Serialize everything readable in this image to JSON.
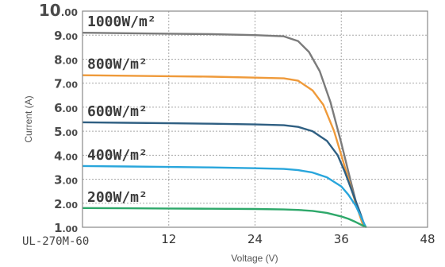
{
  "chart_data": {
    "type": "line",
    "title": "",
    "xlabel": "Voltage (V)",
    "ylabel": "Current (A)",
    "xlim": [
      0,
      48
    ],
    "ylim": [
      1,
      10
    ],
    "x_ticks": [
      "12",
      "24",
      "36",
      "48"
    ],
    "y_ticks": [
      "1.00",
      "2.00",
      "3.00",
      "4.00",
      "5.00",
      "6.00",
      "7.00",
      "8.00",
      "9.00",
      "10.00"
    ],
    "grid": true,
    "annotation": "UL-270M-60",
    "series": [
      {
        "name": "1000W/m²",
        "color": "#7b7b7b",
        "x": [
          0,
          6,
          12,
          18,
          24,
          28,
          30,
          31.5,
          33,
          34.5,
          36,
          37,
          38,
          38.8,
          39.3
        ],
        "y": [
          9.1,
          9.08,
          9.06,
          9.04,
          9.0,
          8.95,
          8.75,
          8.3,
          7.5,
          6.2,
          4.5,
          3.3,
          2.1,
          1.3,
          1.0
        ]
      },
      {
        "name": "800W/m²",
        "color": "#ef9a3a",
        "x": [
          0,
          6,
          12,
          18,
          24,
          28,
          30,
          32,
          33.5,
          35,
          36,
          37,
          38,
          38.9,
          39.3
        ],
        "y": [
          7.33,
          7.31,
          7.29,
          7.27,
          7.23,
          7.2,
          7.1,
          6.7,
          6.1,
          5.0,
          4.0,
          3.0,
          2.0,
          1.2,
          1.0
        ]
      },
      {
        "name": "600W/m²",
        "color": "#2f5f82",
        "x": [
          0,
          6,
          12,
          18,
          24,
          28,
          30,
          32,
          34,
          35.5,
          36.5,
          37.5,
          38.5,
          39.1,
          39.4
        ],
        "y": [
          5.37,
          5.35,
          5.33,
          5.31,
          5.28,
          5.25,
          5.18,
          5.0,
          4.6,
          4.0,
          3.3,
          2.5,
          1.7,
          1.2,
          1.0
        ]
      },
      {
        "name": "400W/m²",
        "color": "#29a6dc",
        "x": [
          0,
          6,
          12,
          18,
          24,
          28,
          30,
          32,
          34,
          36,
          37,
          38,
          38.8,
          39.4
        ],
        "y": [
          3.55,
          3.53,
          3.51,
          3.49,
          3.46,
          3.43,
          3.38,
          3.28,
          3.08,
          2.7,
          2.35,
          1.9,
          1.4,
          1.0
        ]
      },
      {
        "name": "200W/m²",
        "color": "#2ea86a",
        "x": [
          0,
          6,
          12,
          18,
          24,
          28,
          30,
          32,
          34,
          36,
          37,
          38,
          38.8,
          39.5
        ],
        "y": [
          1.8,
          1.79,
          1.78,
          1.77,
          1.76,
          1.74,
          1.72,
          1.68,
          1.6,
          1.45,
          1.35,
          1.22,
          1.1,
          1.0
        ]
      }
    ]
  }
}
